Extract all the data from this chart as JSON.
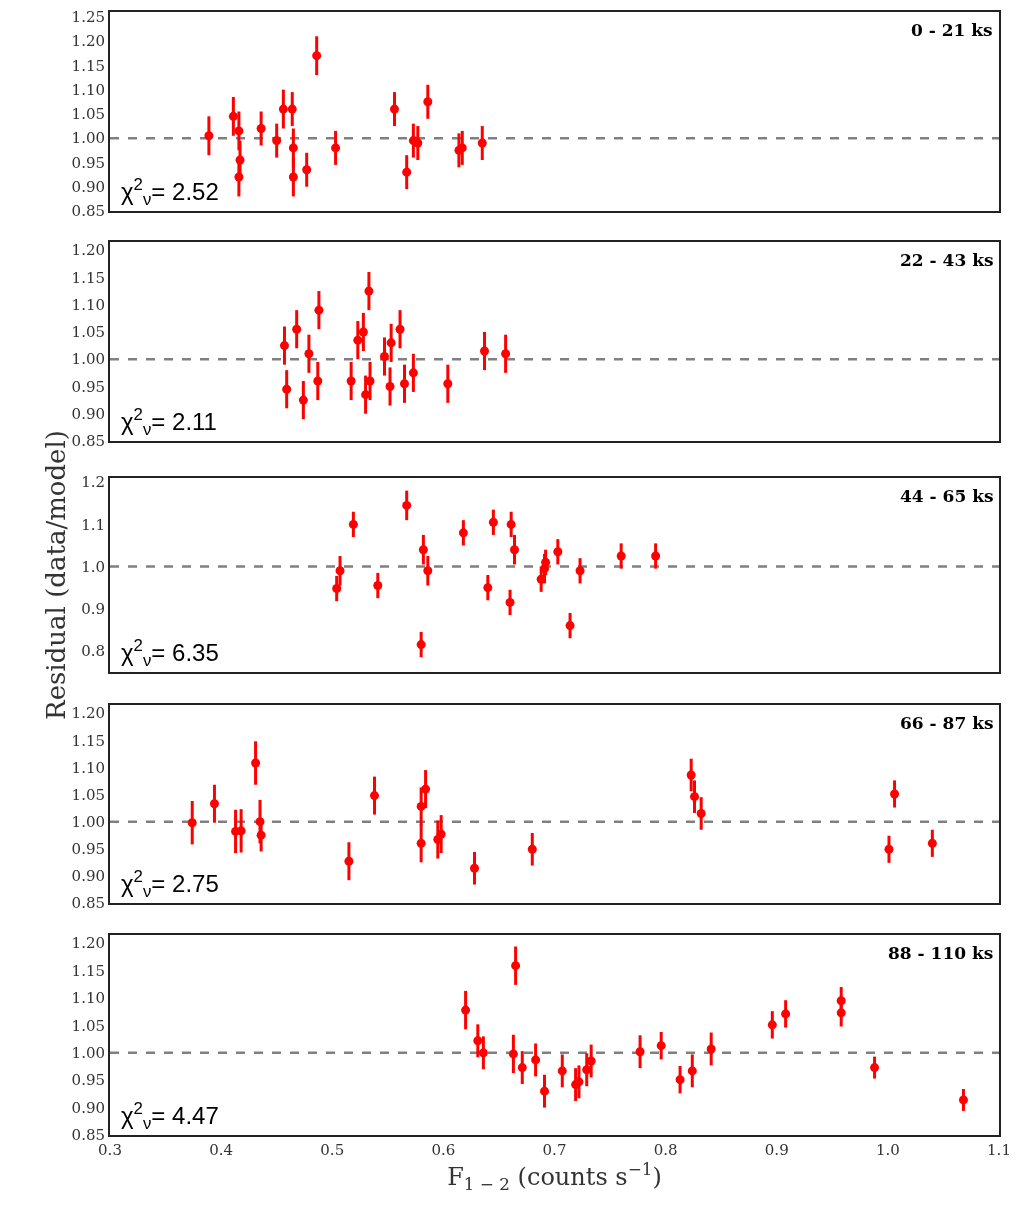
{
  "chart_data": [
    {
      "type": "scatter",
      "marker": "circle",
      "grid": false,
      "tick_labels": "y",
      "xlim": [
        0.3,
        1.1
      ],
      "ylim": [
        0.85,
        1.26
      ],
      "yticks": [
        0.85,
        {
          "value": 0.9,
          "label": "0.90"
        },
        0.95,
        {
          "value": 1,
          "label": "1.00"
        },
        1.05,
        {
          "value": 1.1,
          "label": "1.10"
        },
        1.15,
        {
          "value": 1.2,
          "label": "1.20"
        },
        1.25
      ],
      "ref_lines": [
        {
          "axis": "y",
          "value": 1,
          "color": "#808080",
          "line_style": "dashed"
        }
      ],
      "annotations": [
        "0 - 21 ks",
        "χ$^{2}$$_{ν}$= 2.52"
      ],
      "x": [
        0.389,
        0.411,
        0.416,
        0.417,
        0.416,
        0.436,
        0.45,
        0.456,
        0.464,
        0.465,
        0.465,
        0.477,
        0.486,
        0.503,
        0.556,
        0.567,
        0.573,
        0.577,
        0.586,
        0.614,
        0.617,
        0.635
      ],
      "series": [
        {
          "color": "#ff0000",
          "values": [
            1.005,
            1.045,
            1.015,
            0.955,
            0.92,
            1.02,
            0.995,
            1.06,
            1.06,
            0.98,
            0.92,
            0.935,
            1.17,
            0.98,
            1.06,
            0.93,
            0.995,
            0.99,
            1.075,
            0.975,
            0.98,
            0.99
          ],
          "errors": [
            0.04,
            0.04,
            0.04,
            0.04,
            0.04,
            0.035,
            0.035,
            0.04,
            0.035,
            0.04,
            0.04,
            0.035,
            0.04,
            0.035,
            0.035,
            0.035,
            0.035,
            0.035,
            0.035,
            0.035,
            0.035,
            0.035
          ]
        }
      ]
    },
    {
      "type": "scatter",
      "marker": "circle",
      "grid": false,
      "tick_labels": "y",
      "xlim": [
        0.3,
        1.1
      ],
      "ylim": [
        0.85,
        1.215
      ],
      "yticks": [
        0.85,
        {
          "value": 0.9,
          "label": "0.90"
        },
        0.95,
        {
          "value": 1,
          "label": "1.00"
        },
        1.05,
        {
          "value": 1.1,
          "label": "1.10"
        },
        1.15,
        {
          "value": 1.2,
          "label": "1.20"
        }
      ],
      "ref_lines": [
        {
          "axis": "y",
          "value": 1,
          "color": "#808080",
          "line_style": "dashed"
        }
      ],
      "annotations": [
        "22 - 43 ks",
        "χ$^{2}$$_{ν}$= 2.11"
      ],
      "x": [
        0.457,
        0.459,
        0.468,
        0.474,
        0.479,
        0.488,
        0.487,
        0.517,
        0.523,
        0.528,
        0.53,
        0.533,
        0.534,
        0.547,
        0.552,
        0.553,
        0.561,
        0.565,
        0.573,
        0.604,
        0.637,
        0.656
      ],
      "series": [
        {
          "color": "#ff0000",
          "values": [
            1.025,
            0.945,
            1.055,
            0.925,
            1.01,
            1.09,
            0.96,
            0.96,
            1.035,
            1.05,
            0.935,
            1.125,
            0.96,
            1.005,
            0.95,
            1.03,
            1.055,
            0.955,
            0.975,
            0.955,
            1.015,
            1.01
          ],
          "errors": [
            0.035,
            0.035,
            0.035,
            0.035,
            0.035,
            0.035,
            0.035,
            0.035,
            0.035,
            0.035,
            0.035,
            0.035,
            0.035,
            0.035,
            0.035,
            0.035,
            0.035,
            0.035,
            0.035,
            0.035,
            0.035,
            0.035
          ]
        }
      ]
    },
    {
      "type": "scatter",
      "marker": "circle",
      "grid": false,
      "tick_labels": "y",
      "xlim": [
        0.3,
        1.1
      ],
      "ylim": [
        0.75,
        1.21
      ],
      "yticks": [
        0.8,
        0.9,
        {
          "value": 1,
          "label": "1.0"
        },
        1.1,
        1.2
      ],
      "ylabel": "Residual (data/model)",
      "ref_lines": [
        {
          "axis": "y",
          "value": 1,
          "color": "#808080",
          "line_style": "dashed"
        }
      ],
      "annotations": [
        "44 - 65 ks",
        "χ$^{2}$$_{ν}$= 6.35"
      ],
      "x": [
        0.504,
        0.507,
        0.519,
        0.541,
        0.567,
        0.582,
        0.58,
        0.586,
        0.618,
        0.64,
        0.645,
        0.66,
        0.661,
        0.664,
        0.688,
        0.692,
        0.691,
        0.703,
        0.714,
        0.723,
        0.76,
        0.791
      ],
      "series": [
        {
          "color": "#ff0000",
          "values": [
            0.948,
            0.99,
            1.1,
            0.955,
            1.145,
            1.04,
            0.815,
            0.99,
            1.08,
            0.95,
            1.105,
            0.915,
            1.1,
            1.04,
            0.97,
            1.01,
            0.995,
            1.035,
            0.86,
            0.99,
            1.025,
            1.025
          ],
          "errors": [
            0.03,
            0.035,
            0.03,
            0.03,
            0.035,
            0.035,
            0.03,
            0.035,
            0.03,
            0.03,
            0.03,
            0.03,
            0.03,
            0.035,
            0.03,
            0.03,
            0.035,
            0.03,
            0.03,
            0.03,
            0.03,
            0.03
          ]
        }
      ]
    },
    {
      "type": "scatter",
      "marker": "circle",
      "grid": false,
      "tick_labels": "y",
      "xlim": [
        0.3,
        1.1
      ],
      "ylim": [
        0.85,
        1.215
      ],
      "yticks": [
        0.85,
        {
          "value": 0.9,
          "label": "0.90"
        },
        0.95,
        {
          "value": 1,
          "label": "1.00"
        },
        1.05,
        {
          "value": 1.1,
          "label": "1.10"
        },
        1.15,
        {
          "value": 1.2,
          "label": "1.20"
        }
      ],
      "ref_lines": [
        {
          "axis": "y",
          "value": 1,
          "color": "#808080",
          "line_style": "dashed"
        }
      ],
      "annotations": [
        "66 - 87 ks",
        "χ$^{2}$$_{ν}$= 2.75"
      ],
      "x": [
        0.374,
        0.394,
        0.413,
        0.418,
        0.431,
        0.435,
        0.436,
        0.515,
        0.538,
        0.58,
        0.584,
        0.58,
        0.595,
        0.598,
        0.628,
        0.68,
        0.823,
        0.826,
        0.832,
        1.001,
        1.006,
        1.04
      ],
      "series": [
        {
          "color": "#ff0000",
          "values": [
            0.998,
            1.033,
            0.982,
            0.983,
            1.108,
            1.0,
            0.975,
            0.927,
            1.048,
            1.028,
            1.06,
            0.96,
            0.967,
            0.977,
            0.914,
            0.949,
            1.086,
            1.046,
            1.015,
            0.949,
            1.051,
            0.96
          ],
          "errors": [
            0.04,
            0.035,
            0.04,
            0.04,
            0.04,
            0.04,
            0.03,
            0.035,
            0.035,
            0.035,
            0.035,
            0.035,
            0.035,
            0.035,
            0.03,
            0.03,
            0.03,
            0.03,
            0.03,
            0.025,
            0.025,
            0.025
          ]
        }
      ]
    },
    {
      "type": "scatter",
      "marker": "circle",
      "grid": false,
      "xlim": [
        0.3,
        1.1
      ],
      "ylim": [
        0.85,
        1.215
      ],
      "xticks": [
        0.3,
        0.4,
        0.5,
        0.6,
        0.7,
        0.8,
        0.9,
        {
          "value": 1,
          "label": "1.0"
        },
        1.1
      ],
      "yticks": [
        0.85,
        {
          "value": 0.9,
          "label": "0.90"
        },
        0.95,
        {
          "value": 1,
          "label": "1.00"
        },
        1.05,
        {
          "value": 1.1,
          "label": "1.10"
        },
        1.15,
        {
          "value": 1.2,
          "label": "1.20"
        }
      ],
      "xlabel": "F$_{1 − 2}$ (counts s$^{−1}$)",
      "ref_lines": [
        {
          "axis": "y",
          "value": 1,
          "color": "#808080",
          "line_style": "dashed"
        }
      ],
      "annotations": [
        "88 - 110 ks",
        "χ$^{2}$$_{ν}$= 4.47"
      ],
      "x": [
        0.62,
        0.631,
        0.636,
        0.665,
        0.663,
        0.671,
        0.683,
        0.691,
        0.707,
        0.719,
        0.722,
        0.729,
        0.733,
        0.777,
        0.796,
        0.813,
        0.824,
        0.841,
        0.896,
        0.908,
        0.958,
        0.958,
        0.988,
        1.068
      ],
      "series": [
        {
          "color": "#ff0000",
          "values": [
            1.078,
            1.022,
            1.0,
            1.159,
            0.998,
            0.973,
            0.987,
            0.93,
            0.967,
            0.942,
            0.947,
            0.969,
            0.985,
            1.002,
            1.013,
            0.951,
            0.967,
            1.007,
            1.051,
            1.071,
            1.073,
            1.095,
            0.973,
            0.914
          ],
          "errors": [
            0.035,
            0.03,
            0.03,
            0.035,
            0.035,
            0.03,
            0.03,
            0.03,
            0.03,
            0.03,
            0.03,
            0.03,
            0.03,
            0.03,
            0.025,
            0.025,
            0.03,
            0.03,
            0.025,
            0.025,
            0.025,
            0.025,
            0.02,
            0.02
          ]
        }
      ]
    }
  ]
}
